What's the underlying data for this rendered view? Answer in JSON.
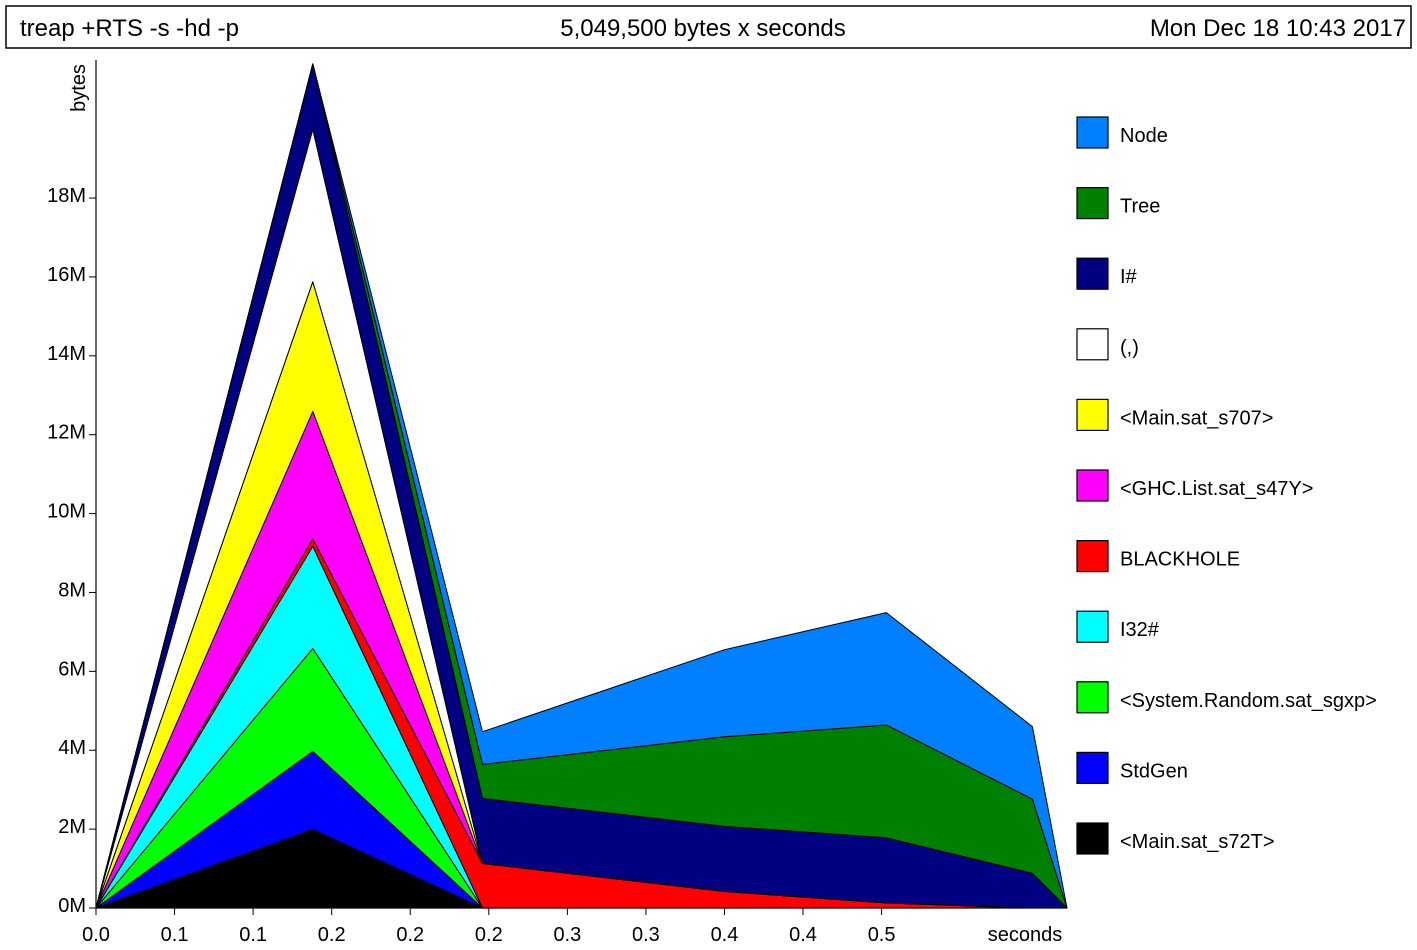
{
  "header": {
    "program": "treap +RTS -s -hd -p",
    "total": "5,049,500 bytes x seconds",
    "date": "Mon Dec 18 10:43 2017"
  },
  "chart_data": {
    "type": "area",
    "stacked": true,
    "ylabel": "bytes",
    "xlabel": "seconds",
    "ylim": [
      0,
      21500000
    ],
    "xlim": [
      0.0,
      0.618
    ],
    "y_ticks": [
      {
        "value": 0,
        "label": "0M"
      },
      {
        "value": 2000000,
        "label": "2M"
      },
      {
        "value": 4000000,
        "label": "4M"
      },
      {
        "value": 6000000,
        "label": "6M"
      },
      {
        "value": 8000000,
        "label": "8M"
      },
      {
        "value": 10000000,
        "label": "10M"
      },
      {
        "value": 12000000,
        "label": "12M"
      },
      {
        "value": 14000000,
        "label": "14M"
      },
      {
        "value": 16000000,
        "label": "16M"
      },
      {
        "value": 18000000,
        "label": "18M"
      }
    ],
    "x_ticks": [
      {
        "value": 0.0,
        "label": "0.0"
      },
      {
        "value": 0.05,
        "label": "0.1"
      },
      {
        "value": 0.1,
        "label": "0.1"
      },
      {
        "value": 0.15,
        "label": "0.2"
      },
      {
        "value": 0.2,
        "label": "0.2"
      },
      {
        "value": 0.25,
        "label": "0.2"
      },
      {
        "value": 0.3,
        "label": "0.3"
      },
      {
        "value": 0.35,
        "label": "0.3"
      },
      {
        "value": 0.4,
        "label": "0.4"
      },
      {
        "value": 0.45,
        "label": "0.4"
      },
      {
        "value": 0.5,
        "label": "0.5"
      }
    ],
    "x": [
      0.0,
      0.138,
      0.246,
      0.4,
      0.503,
      0.596,
      0.618
    ],
    "series": [
      {
        "name": "<Main.sat_s72T>",
        "color": "#000000",
        "values": [
          0,
          1990000,
          0,
          0,
          0,
          0,
          0
        ]
      },
      {
        "name": "StdGen",
        "color": "#0000ff",
        "values": [
          0,
          1980000,
          0,
          0,
          0,
          0,
          0
        ]
      },
      {
        "name": "<System.Random.sat_sgxp>",
        "color": "#00ff00",
        "values": [
          0,
          2610000,
          0,
          0,
          0,
          0,
          0
        ]
      },
      {
        "name": "I32#",
        "color": "#00ffff",
        "values": [
          0,
          2590000,
          0,
          0,
          0,
          0,
          0
        ]
      },
      {
        "name": "BLACKHOLE",
        "color": "#ff0000",
        "values": [
          0,
          190000,
          1130000,
          420000,
          130000,
          0,
          0
        ]
      },
      {
        "name": "<GHC.List.sat_s47Y>",
        "color": "#ff00ff",
        "values": [
          0,
          3230000,
          0,
          0,
          0,
          0,
          0
        ]
      },
      {
        "name": "<Main.sat_s707>",
        "color": "#ffff00",
        "values": [
          0,
          3290000,
          0,
          0,
          0,
          0,
          0
        ]
      },
      {
        "name": "(,)",
        "color": "#ffffff",
        "values": [
          0,
          3860000,
          0,
          0,
          0,
          0,
          0
        ]
      },
      {
        "name": "I#",
        "color": "#000080",
        "values": [
          0,
          1660000,
          1650000,
          1650000,
          1650000,
          880000,
          0
        ]
      },
      {
        "name": "Tree",
        "color": "#008000",
        "values": [
          0,
          0,
          860000,
          2270000,
          2860000,
          1880000,
          0
        ]
      },
      {
        "name": "Node",
        "color": "#0080ff",
        "values": [
          0,
          0,
          830000,
          2210000,
          2850000,
          1840000,
          0
        ]
      }
    ],
    "legend": [
      {
        "label": "Node",
        "color": "#0080ff"
      },
      {
        "label": "Tree",
        "color": "#008000"
      },
      {
        "label": "I#",
        "color": "#000080"
      },
      {
        "label": "(,)",
        "color": "#ffffff"
      },
      {
        "label": "<Main.sat_s707>",
        "color": "#ffff00"
      },
      {
        "label": "<GHC.List.sat_s47Y>",
        "color": "#ff00ff"
      },
      {
        "label": "BLACKHOLE",
        "color": "#ff0000"
      },
      {
        "label": "I32#",
        "color": "#00ffff"
      },
      {
        "label": "<System.Random.sat_sgxp>",
        "color": "#00ff00"
      },
      {
        "label": "StdGen",
        "color": "#0000ff"
      },
      {
        "label": "<Main.sat_s72T>",
        "color": "#000000"
      }
    ],
    "legend_position": "right"
  }
}
